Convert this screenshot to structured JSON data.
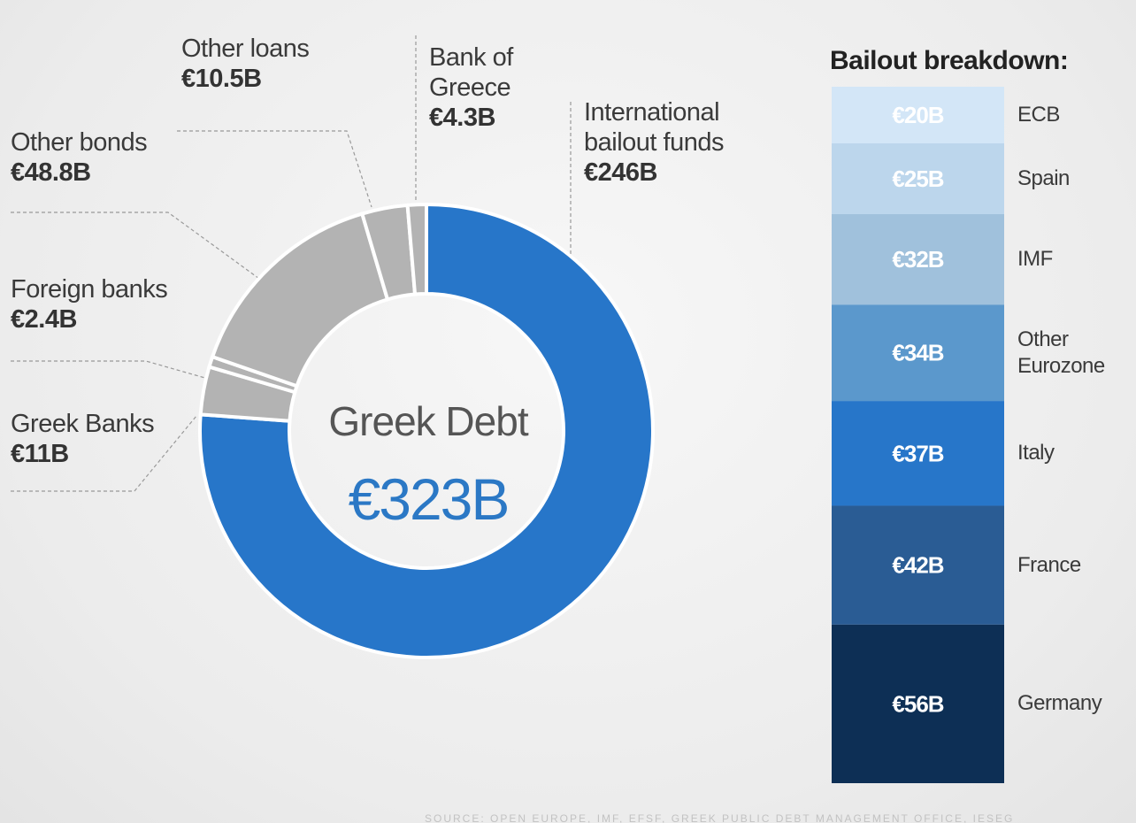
{
  "chart_data": [
    {
      "type": "donut",
      "categories": [
        "International\nbailout funds",
        "Greek Banks",
        "Foreign banks",
        "Other bonds",
        "Other loans",
        "Bank of\nGreece"
      ],
      "values": [
        246,
        11,
        2.4,
        48.8,
        10.5,
        4.3
      ],
      "value_labels": [
        "€246B",
        "€11B",
        "€2.4B",
        "€48.8B",
        "€10.5B",
        "€4.3B"
      ],
      "colors": [
        "#2776c9",
        "#b3b3b3",
        "#b3b3b3",
        "#b3b3b3",
        "#b3b3b3",
        "#b3b3b3"
      ],
      "center_title": "Greek Debt",
      "center_value_label": "€323B"
    },
    {
      "type": "stacked_bar",
      "title": "Bailout breakdown:",
      "categories": [
        "ECB",
        "Spain",
        "IMF",
        "Other\nEurozone",
        "Italy",
        "France",
        "Germany"
      ],
      "values": [
        20,
        25,
        32,
        34,
        37,
        42,
        56
      ],
      "value_labels": [
        "€20B",
        "€25B",
        "€32B",
        "€34B",
        "€37B",
        "€42B",
        "€56B"
      ],
      "colors": [
        "#d3e6f7",
        "#bcd6ec",
        "#a0c1dc",
        "#5b98cc",
        "#2776c9",
        "#2a5c94",
        "#0d2f55"
      ]
    }
  ],
  "source": "SOURCE: OPEN EUROPE, IMF, EFSF, GREEK PUBLIC DEBT MANAGEMENT OFFICE, IESEG"
}
